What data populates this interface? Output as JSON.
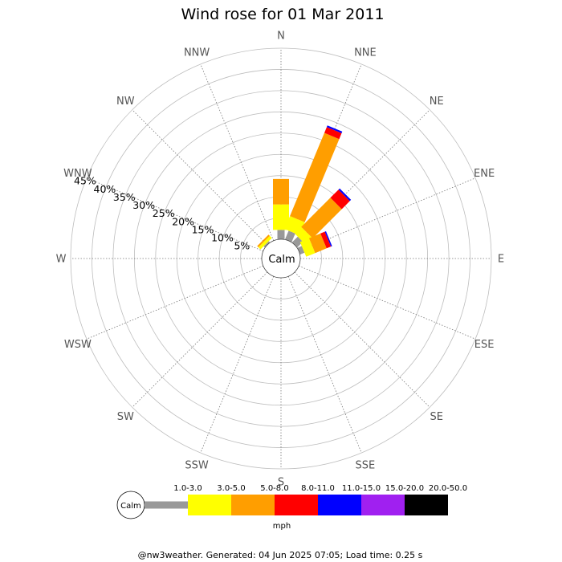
{
  "chart_data": {
    "type": "wind-rose",
    "title": "Wind rose for 01 Mar 2011",
    "directions": [
      "N",
      "NNE",
      "NE",
      "ENE",
      "E",
      "ESE",
      "SE",
      "SSE",
      "S",
      "SSW",
      "SW",
      "WSW",
      "W",
      "WNW",
      "NW",
      "NNW"
    ],
    "radial_tick_labels": [
      "5%",
      "10%",
      "15%",
      "20%",
      "25%",
      "30%",
      "35%",
      "40%",
      "45%"
    ],
    "radial_max": 45,
    "calm_label": "Calm",
    "speed_bins": [
      {
        "label": "1.0-3.0",
        "color": "#999999"
      },
      {
        "label": "3.0-5.0",
        "color": "#ffff00"
      },
      {
        "label": "5.0-8.0",
        "color": "#ff9e00"
      },
      {
        "label": "8.0-11.0",
        "color": "#ff0000"
      },
      {
        "label": "11.0-15.0",
        "color": "#0000ff"
      },
      {
        "label": "15.0-20.0",
        "color": "#a020f0"
      },
      {
        "label": "20.0-50.0",
        "color": "#000000"
      }
    ],
    "series": [
      {
        "direction": "N",
        "cumulative": [
          2.2,
          8.2,
          14.2
        ]
      },
      {
        "direction": "NNE",
        "cumulative": [
          2.2,
          5.5,
          26.7,
          28.2,
          28.6
        ]
      },
      {
        "direction": "NE",
        "cumulative": [
          1.9,
          4.1,
          13.8,
          16.5,
          16.9
        ]
      },
      {
        "direction": "ENE",
        "cumulative": [
          1.1,
          3.4,
          6.3,
          7.4,
          7.7
        ]
      },
      {
        "direction": "NW",
        "cumulative": [
          0.4,
          1.1,
          1.5
        ]
      }
    ],
    "legend_unit": "mph",
    "grid": true
  },
  "footer": "@nw3weather. Generated: 04 Jun 2025 07:05; Load time: 0.25 s"
}
